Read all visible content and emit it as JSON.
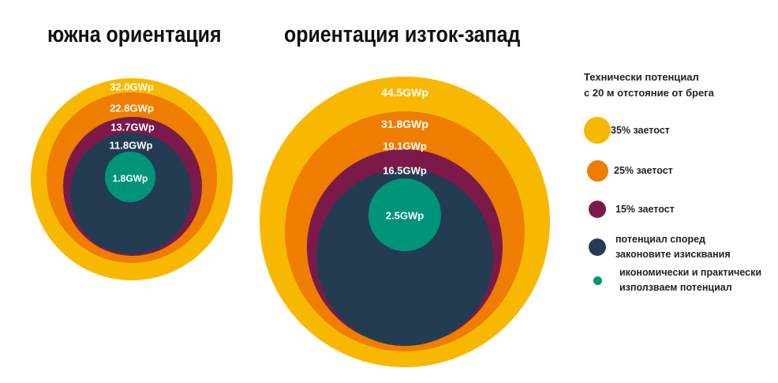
{
  "chart_data": [
    {
      "type": "nested-circles",
      "title": "южна ориентация",
      "unit": "GWp",
      "series": [
        {
          "legend_key": "35",
          "value": 32.0,
          "label": "32.0GWp"
        },
        {
          "legend_key": "25",
          "value": 22.8,
          "label": "22.8GWp"
        },
        {
          "legend_key": "15",
          "value": 13.7,
          "label": "13.7GWp"
        },
        {
          "legend_key": "legal",
          "value": 11.8,
          "label": "11.8GWp"
        },
        {
          "legend_key": "economic",
          "value": 1.8,
          "label": "1.8GWp"
        }
      ]
    },
    {
      "type": "nested-circles",
      "title": "ориентация изток-запад",
      "unit": "GWp",
      "series": [
        {
          "legend_key": "35",
          "value": 44.5,
          "label": "44.5GWp"
        },
        {
          "legend_key": "25",
          "value": 31.8,
          "label": "31.8GWp"
        },
        {
          "legend_key": "15",
          "value": 19.1,
          "label": "19.1GWp"
        },
        {
          "legend_key": "legal",
          "value": 16.5,
          "label": "16.5GWp"
        },
        {
          "legend_key": "economic",
          "value": 2.5,
          "label": "2.5GWp"
        }
      ]
    }
  ],
  "legend": {
    "title": "Технически потенциал\nс 20 м отстояние от брега",
    "items": [
      {
        "key": "35",
        "label": "35% заетост",
        "color": "#F9B800"
      },
      {
        "key": "25",
        "label": "25% заетост",
        "color": "#EF7D00"
      },
      {
        "key": "15",
        "label": "15% заетост",
        "color": "#7B1A4A"
      },
      {
        "key": "legal",
        "label": "потенциал според\nзаконовите изисквания",
        "color": "#233C52"
      },
      {
        "key": "economic",
        "label": "икономически и практически\nизползваем потенциал",
        "color": "#00957A"
      }
    ]
  }
}
